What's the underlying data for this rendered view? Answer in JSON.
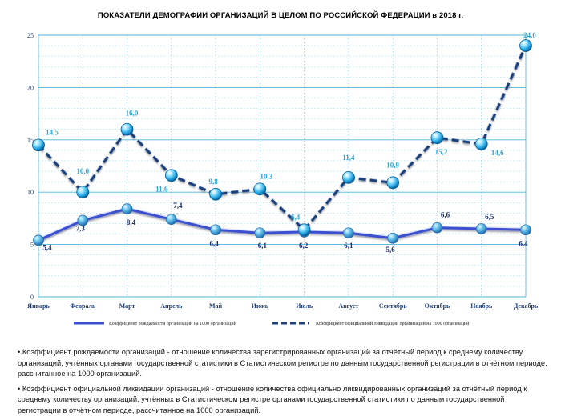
{
  "title": "ПОКАЗАТЕЛИ ДЕМОГРАФИИ ОРГАНИЗАЦИЙ В ЦЕЛОМ ПО РОССИЙСКОЙ ФЕДЕРАЦИИ в 2018 г.",
  "colors": {
    "birth_line": "#3a4fcf",
    "liquidation_line": "#1f3f7a",
    "grid": "#4fb3d9",
    "birth_label": "#1a2f6b",
    "liquidation_label": "#2aa7d8"
  },
  "chart_data": {
    "type": "line",
    "title": "ПОКАЗАТЕЛИ ДЕМОГРАФИИ ОРГАНИЗАЦИЙ В ЦЕЛОМ ПО РОССИЙСКОЙ ФЕДЕРАЦИИ в 2018 г.",
    "categories": [
      "Январь",
      "Февраль",
      "Март",
      "Апрель",
      "Май",
      "Июнь",
      "Июль",
      "Август",
      "Сентябрь",
      "Октябрь",
      "Ноябрь",
      "Декабрь"
    ],
    "ylim": [
      0,
      25
    ],
    "yticks": [
      "0",
      "5",
      "10",
      "15",
      "20",
      "25"
    ],
    "grid": true,
    "legend_position": "bottom",
    "series": [
      {
        "name": "Коэффициент рождаемости организаций на 1000 организаций",
        "style": "solid",
        "values": [
          5.4,
          7.3,
          8.4,
          7.4,
          6.4,
          6.1,
          6.2,
          6.1,
          5.6,
          6.6,
          6.5,
          6.4
        ],
        "labels": [
          "5,4",
          "7,3",
          "8,4",
          "7,4",
          "6,4",
          "6,1",
          "6,2",
          "6,1",
          "5,6",
          "6,6",
          "6,5",
          "6,4"
        ]
      },
      {
        "name": "Коэффициент официальной ликвидации организаций на 1000 организаций",
        "style": "dashed",
        "values": [
          14.5,
          10.0,
          16.0,
          11.6,
          9.8,
          10.3,
          6.4,
          11.4,
          10.9,
          15.2,
          14.6,
          24.0
        ],
        "labels": [
          "14,5",
          "10,0",
          "16,0",
          "11,6",
          "9,8",
          "10,3",
          "6,4",
          "11,4",
          "10,9",
          "15,2",
          "14,6",
          "24,0"
        ]
      }
    ]
  },
  "notes": [
    "• Коэффициент рождаемости организаций - отношение количества зарегистрированных организаций за отчётный период к среднему количеству организаций, учтённых органами государственной статистики в Статистическом регистре по данным государственной регистрации в отчётном периоде, рассчитанное на 1000 организаций.",
    "• Коэффициент официальной ликвидации организаций - отношение количества официально ликвидированных организаций за отчётный период к среднему количеству организаций, учтённых в Статистическом регистре органами государственной статистики по данным государственной регистрации в отчётном периоде, рассчитанное на 1000 организаций."
  ]
}
